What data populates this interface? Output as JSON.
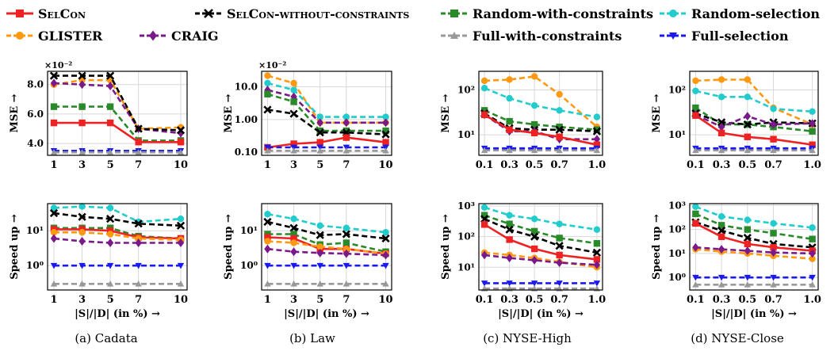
{
  "colors": {
    "SelCon": "#ee2222",
    "SelCon-without-constraints": "#000000",
    "Random-with-constraints": "#2a8a2a",
    "Random-selection": "#22cccc",
    "GLISTER": "#ff9911",
    "CRAIG": "#7a1a8a",
    "Full-with-constraints": "#999999",
    "Full-selection": "#1a1aee"
  },
  "legend": [
    {
      "key": "SelCon",
      "label": "SelCon",
      "marker": "square",
      "smallcaps": true
    },
    {
      "key": "SelCon-without-constraints",
      "label": "SelCon-without-constraints",
      "marker": "x",
      "smallcaps": true
    },
    {
      "key": "Random-with-constraints",
      "label": "Random-with-constraints",
      "marker": "square"
    },
    {
      "key": "Random-selection",
      "label": "Random-selection",
      "marker": "circle"
    },
    {
      "key": "GLISTER",
      "label": "GLISTER",
      "marker": "circle"
    },
    {
      "key": "CRAIG",
      "label": "CRAIG",
      "marker": "diamond"
    },
    {
      "key": "Full-with-constraints",
      "label": "Full-with-constraints",
      "marker": "triangle-up"
    },
    {
      "key": "Full-selection",
      "label": "Full-selection",
      "marker": "triangle-down"
    }
  ],
  "captions": [
    "(a) Cadata",
    "(b) Law",
    "(c) NYSE-High",
    "(d) NYSE-Close"
  ],
  "xlabel": "|S|/|D| (in %) →",
  "chart_data": [
    {
      "type": "line",
      "panel": "mse",
      "dataset": "Cadata",
      "x": [
        1,
        3,
        5,
        7,
        10
      ],
      "xticks": [
        "1",
        "3",
        "5",
        "7",
        "10"
      ],
      "ylabel": "MSE →",
      "yscale": "linear",
      "ylim": [
        3.2,
        8.9
      ],
      "yticks": [
        4.0,
        6.0,
        8.0
      ],
      "yticklabels": [
        "4.0",
        "6.0",
        "8.0"
      ],
      "yexponent": "×10⁻²",
      "series": [
        {
          "key": "Random-with-constraints",
          "values": [
            6.5,
            6.5,
            6.5,
            4.2,
            4.2
          ]
        },
        {
          "key": "GLISTER",
          "values": [
            8.0,
            8.3,
            8.3,
            5.0,
            5.1
          ]
        },
        {
          "key": "CRAIG",
          "values": [
            8.1,
            8.0,
            7.9,
            5.0,
            4.7
          ]
        },
        {
          "key": "SelCon-without-constraints",
          "values": [
            8.6,
            8.6,
            8.6,
            5.0,
            4.9
          ]
        },
        {
          "key": "SelCon",
          "values": [
            5.4,
            5.4,
            5.4,
            4.1,
            4.1
          ]
        },
        {
          "key": "Full-selection",
          "values": [
            3.5,
            3.5,
            3.5,
            3.5,
            3.5
          ]
        },
        {
          "key": "Full-with-constraints",
          "values": [
            3.4,
            3.4,
            3.4,
            3.4,
            3.4
          ]
        }
      ]
    },
    {
      "type": "line",
      "panel": "mse",
      "dataset": "Law",
      "x": [
        1,
        3,
        5,
        7,
        10
      ],
      "xticks": [
        "1",
        "3",
        "5",
        "7",
        "10"
      ],
      "ylabel": "MSE →",
      "yscale": "log",
      "ylim": [
        0.08,
        30
      ],
      "yticks": [
        0.1,
        1.0,
        10.0
      ],
      "yticklabels": [
        "0.10",
        "1.00",
        "10.0"
      ],
      "yexponent": "×10⁻²",
      "series": [
        {
          "key": "GLISTER",
          "values": [
            22,
            13,
            0.8,
            0.8,
            0.8
          ]
        },
        {
          "key": "Random-selection",
          "values": [
            13,
            8.0,
            1.2,
            1.2,
            1.2
          ]
        },
        {
          "key": "CRAIG",
          "values": [
            8.0,
            5.0,
            0.8,
            0.8,
            0.8
          ]
        },
        {
          "key": "Random-with-constraints",
          "values": [
            6.0,
            3.5,
            0.45,
            0.45,
            0.45
          ]
        },
        {
          "key": "SelCon-without-constraints",
          "values": [
            2.0,
            1.5,
            0.4,
            0.4,
            0.35
          ]
        },
        {
          "key": "SelCon",
          "values": [
            0.14,
            0.18,
            0.2,
            0.28,
            0.2
          ]
        },
        {
          "key": "Full-selection",
          "values": [
            0.14,
            0.14,
            0.14,
            0.14,
            0.14
          ]
        },
        {
          "key": "Full-with-constraints",
          "values": [
            0.11,
            0.11,
            0.11,
            0.11,
            0.11
          ]
        }
      ]
    },
    {
      "type": "line",
      "panel": "mse",
      "dataset": "NYSE-High",
      "x": [
        0.1,
        0.3,
        0.5,
        0.7,
        1.0
      ],
      "xticks": [
        "0.1",
        "0.3",
        "0.5",
        "0.7",
        "1.0"
      ],
      "ylabel": "MSE →",
      "yscale": "log",
      "ylim": [
        3.5,
        260
      ],
      "yticks": [
        10,
        100
      ],
      "yticklabels": [
        "10¹",
        "10²"
      ],
      "series": [
        {
          "key": "GLISTER",
          "values": [
            160,
            170,
            200,
            80,
            15
          ]
        },
        {
          "key": "Random-selection",
          "values": [
            110,
            65,
            45,
            35,
            25
          ]
        },
        {
          "key": "Random-with-constraints",
          "values": [
            35,
            20,
            17,
            15,
            13
          ]
        },
        {
          "key": "SelCon-without-constraints",
          "values": [
            30,
            14,
            13,
            13,
            12
          ]
        },
        {
          "key": "CRAIG",
          "values": [
            28,
            12,
            12,
            8,
            8
          ]
        },
        {
          "key": "SelCon",
          "values": [
            28,
            13,
            11,
            9,
            6
          ]
        },
        {
          "key": "Full-selection",
          "values": [
            5,
            5,
            5,
            5,
            5
          ]
        },
        {
          "key": "Full-with-constraints",
          "values": [
            4.5,
            4.5,
            4.5,
            4.5,
            4.5
          ]
        }
      ]
    },
    {
      "type": "line",
      "panel": "mse",
      "dataset": "NYSE-Close",
      "x": [
        0.1,
        0.3,
        0.5,
        0.7,
        1.0
      ],
      "xticks": [
        "0.1",
        "0.3",
        "0.5",
        "0.7",
        "1.0"
      ],
      "ylabel": "MSE →",
      "yscale": "log",
      "ylim": [
        3.5,
        260
      ],
      "yticks": [
        10,
        100
      ],
      "yticklabels": [
        "10¹",
        "10²"
      ],
      "series": [
        {
          "key": "GLISTER",
          "values": [
            160,
            170,
            170,
            40,
            17
          ]
        },
        {
          "key": "Random-selection",
          "values": [
            95,
            70,
            70,
            38,
            33
          ]
        },
        {
          "key": "Random-with-constraints",
          "values": [
            40,
            17,
            17,
            15,
            12
          ]
        },
        {
          "key": "SelCon-without-constraints",
          "values": [
            30,
            19,
            17,
            19,
            18
          ]
        },
        {
          "key": "CRAIG",
          "values": [
            28,
            15,
            26,
            17,
            18
          ]
        },
        {
          "key": "SelCon",
          "values": [
            27,
            11,
            9,
            8,
            6
          ]
        },
        {
          "key": "Full-selection",
          "values": [
            5,
            5,
            5,
            5,
            5
          ]
        },
        {
          "key": "Full-with-constraints",
          "values": [
            4.5,
            4.5,
            4.5,
            4.5,
            4.5
          ]
        }
      ]
    },
    {
      "type": "line",
      "panel": "speedup",
      "dataset": "Cadata",
      "x": [
        1,
        3,
        5,
        7,
        10
      ],
      "xticks": [
        "1",
        "3",
        "5",
        "7",
        "10"
      ],
      "ylabel": "Speed up →",
      "yscale": "log",
      "ylim": [
        0.2,
        60
      ],
      "yticks": [
        1,
        10
      ],
      "yticklabels": [
        "10⁰",
        "10¹"
      ],
      "series": [
        {
          "key": "Random-selection",
          "values": [
            45,
            50,
            45,
            18,
            22
          ]
        },
        {
          "key": "SelCon-without-constraints",
          "values": [
            32,
            25,
            22,
            16,
            14
          ]
        },
        {
          "key": "Random-with-constraints",
          "values": [
            12,
            12,
            12,
            7,
            6
          ]
        },
        {
          "key": "SelCon",
          "values": [
            11,
            11,
            10,
            6.5,
            6
          ]
        },
        {
          "key": "GLISTER",
          "values": [
            9,
            9,
            8,
            6,
            5.5
          ]
        },
        {
          "key": "CRAIG",
          "values": [
            6,
            5,
            4.5,
            4.5,
            4.5
          ]
        },
        {
          "key": "Full-selection",
          "values": [
            1,
            1,
            1,
            1,
            1
          ]
        },
        {
          "key": "Full-with-constraints",
          "values": [
            0.3,
            0.3,
            0.3,
            0.3,
            0.3
          ]
        }
      ]
    },
    {
      "type": "line",
      "panel": "speedup",
      "dataset": "Law",
      "x": [
        1,
        3,
        5,
        7,
        10
      ],
      "xticks": [
        "1",
        "3",
        "5",
        "7",
        "10"
      ],
      "ylabel": "Speed up →",
      "yscale": "log",
      "ylim": [
        0.2,
        60
      ],
      "yticks": [
        1,
        10
      ],
      "yticklabels": [
        "10⁰",
        "10¹"
      ],
      "series": [
        {
          "key": "Random-selection",
          "values": [
            30,
            22,
            14,
            12,
            9
          ]
        },
        {
          "key": "SelCon-without-constraints",
          "values": [
            18,
            12,
            7.5,
            8,
            6
          ]
        },
        {
          "key": "Random-with-constraints",
          "values": [
            8,
            8,
            4,
            4.5,
            2.5
          ]
        },
        {
          "key": "SelCon",
          "values": [
            6.5,
            6,
            3,
            3,
            2.2
          ]
        },
        {
          "key": "GLISTER",
          "values": [
            5,
            4.5,
            3.5,
            3,
            2.2
          ]
        },
        {
          "key": "CRAIG",
          "values": [
            3,
            2.5,
            2.3,
            2.2,
            2
          ]
        },
        {
          "key": "Full-selection",
          "values": [
            1,
            1,
            1,
            1,
            1
          ]
        },
        {
          "key": "Full-with-constraints",
          "values": [
            0.3,
            0.3,
            0.3,
            0.3,
            0.3
          ]
        }
      ]
    },
    {
      "type": "line",
      "panel": "speedup",
      "dataset": "NYSE-High",
      "x": [
        0.1,
        0.3,
        0.5,
        0.7,
        1.0
      ],
      "xticks": [
        "0.1",
        "0.3",
        "0.5",
        "0.7",
        "1.0"
      ],
      "ylabel": "Speed up →",
      "yscale": "log",
      "ylim": [
        1.8,
        1200
      ],
      "yticks": [
        10,
        100,
        1000
      ],
      "yticklabels": [
        "10¹",
        "10²",
        "10³"
      ],
      "series": [
        {
          "key": "Random-selection",
          "values": [
            900,
            500,
            380,
            260,
            170
          ]
        },
        {
          "key": "Random-with-constraints",
          "values": [
            500,
            260,
            150,
            90,
            60
          ]
        },
        {
          "key": "SelCon-without-constraints",
          "values": [
            380,
            170,
            100,
            50,
            30
          ]
        },
        {
          "key": "SelCon",
          "values": [
            250,
            80,
            40,
            25,
            18
          ]
        },
        {
          "key": "GLISTER",
          "values": [
            30,
            25,
            20,
            15,
            10
          ]
        },
        {
          "key": "CRAIG",
          "values": [
            25,
            20,
            17,
            14,
            12
          ]
        },
        {
          "key": "Full-selection",
          "values": [
            3,
            3,
            3,
            3,
            3
          ]
        },
        {
          "key": "Full-with-constraints",
          "values": [
            2,
            2,
            2,
            2,
            2
          ]
        }
      ]
    },
    {
      "type": "line",
      "panel": "speedup",
      "dataset": "NYSE-Close",
      "x": [
        0.1,
        0.3,
        0.5,
        0.7,
        1.0
      ],
      "xticks": [
        "0.1",
        "0.3",
        "0.5",
        "0.7",
        "1.0"
      ],
      "ylabel": "Speed up →",
      "yscale": "log",
      "ylim": [
        0.3,
        1200
      ],
      "yticks": [
        1,
        10,
        100,
        1000
      ],
      "yticklabels": [
        "10⁰",
        "10¹",
        "10²",
        "10³"
      ],
      "series": [
        {
          "key": "Random-selection",
          "values": [
            900,
            350,
            250,
            180,
            120
          ]
        },
        {
          "key": "Random-with-constraints",
          "values": [
            450,
            150,
            100,
            70,
            40
          ]
        },
        {
          "key": "SelCon-without-constraints",
          "values": [
            200,
            90,
            45,
            25,
            18
          ]
        },
        {
          "key": "SelCon",
          "values": [
            180,
            50,
            25,
            18,
            13
          ]
        },
        {
          "key": "GLISTER",
          "values": [
            15,
            12,
            10,
            8,
            6
          ]
        },
        {
          "key": "CRAIG",
          "values": [
            18,
            15,
            13,
            11,
            10
          ]
        },
        {
          "key": "Full-selection",
          "values": [
            1,
            1,
            1,
            1,
            1
          ]
        },
        {
          "key": "Full-with-constraints",
          "values": [
            0.5,
            0.5,
            0.5,
            0.5,
            0.5
          ]
        }
      ]
    }
  ]
}
